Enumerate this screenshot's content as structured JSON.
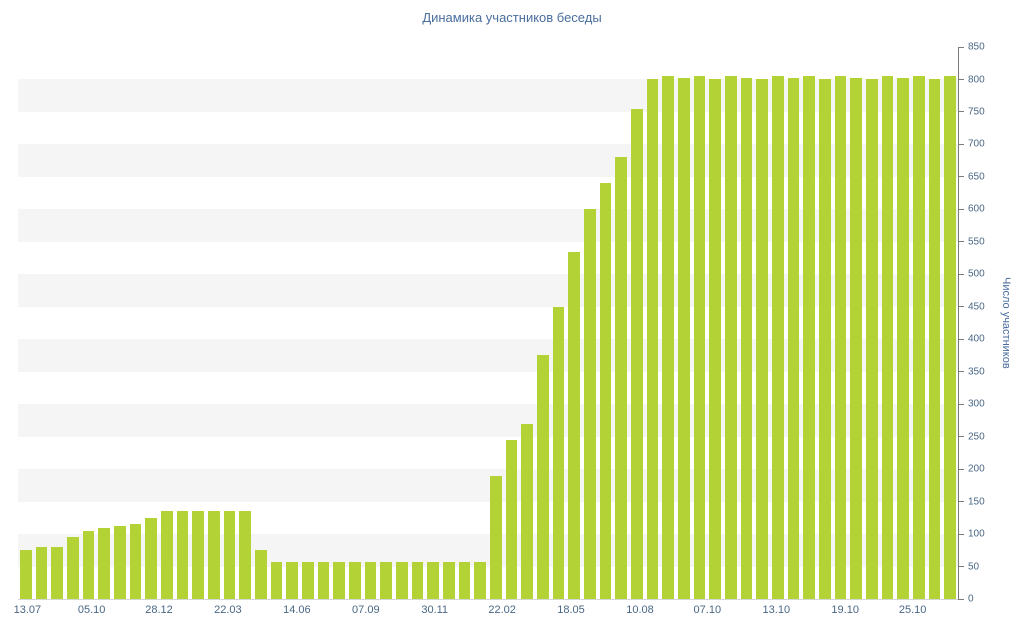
{
  "chart_data": {
    "type": "bar",
    "title": "Динамика участников беседы",
    "xlabel": "",
    "ylabel": "Число участников",
    "ylim": [
      0,
      850
    ],
    "y_tick_interval": 50,
    "grid": "alternating horizontal bands every 50, gray bands at 50-100, 150-200, ... 750-800",
    "legend": "none",
    "bar_color": "#b2d235",
    "band_color": "#f5f5f5",
    "axis_color": "#7c7c7c",
    "tick_text_color": "#4a6785",
    "title_color": "#4a6e9e",
    "values": [
      75,
      80,
      80,
      95,
      105,
      110,
      112,
      115,
      125,
      135,
      135,
      135,
      135,
      135,
      135,
      75,
      57,
      57,
      57,
      57,
      57,
      57,
      57,
      57,
      57,
      57,
      57,
      57,
      57,
      57,
      190,
      245,
      270,
      375,
      450,
      535,
      600,
      640,
      680,
      755,
      800,
      805,
      803,
      805,
      800,
      805,
      803,
      800,
      805,
      803,
      805,
      800,
      805,
      803,
      800,
      805,
      803,
      805,
      800,
      805
    ],
    "x_labels": [
      {
        "label": "13.07",
        "pos": 0.1
      },
      {
        "label": "05.10",
        "pos": 4.2
      },
      {
        "label": "28.12",
        "pos": 8.5
      },
      {
        "label": "22.03",
        "pos": 12.9
      },
      {
        "label": "14.06",
        "pos": 17.3
      },
      {
        "label": "07.09",
        "pos": 21.7
      },
      {
        "label": "30.11",
        "pos": 26.1
      },
      {
        "label": "22.02",
        "pos": 30.4
      },
      {
        "label": "18.05",
        "pos": 34.8
      },
      {
        "label": "10.08",
        "pos": 39.2
      },
      {
        "label": "07.10",
        "pos": 43.5
      },
      {
        "label": "13.10",
        "pos": 47.9
      },
      {
        "label": "19.10",
        "pos": 52.3
      },
      {
        "label": "25.10",
        "pos": 56.6
      }
    ]
  }
}
